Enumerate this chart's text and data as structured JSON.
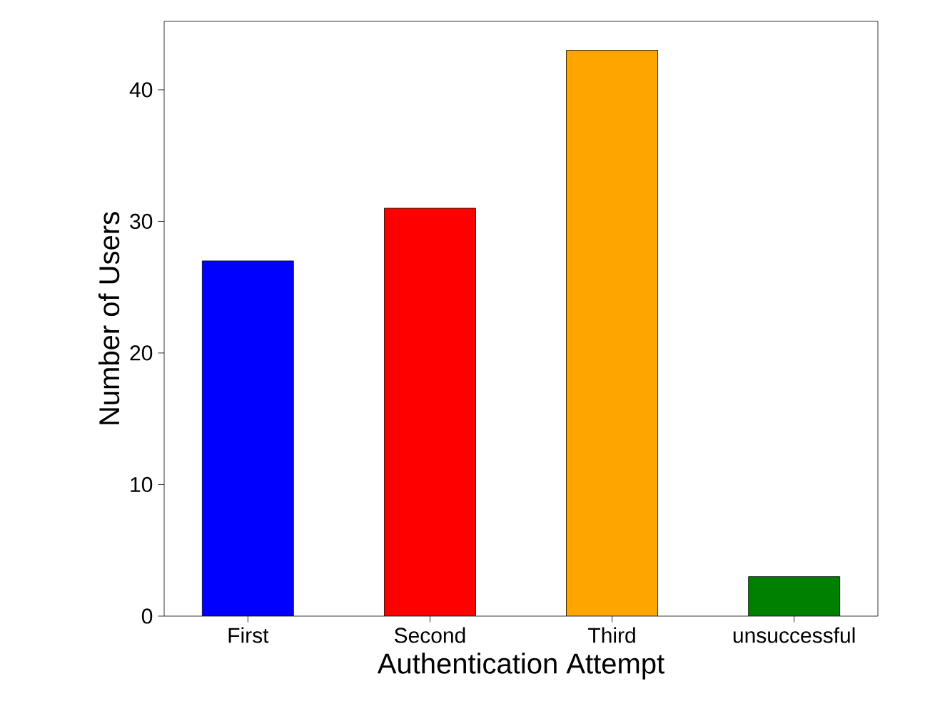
{
  "chart_data": {
    "type": "bar",
    "xlabel": "Authentication Attempt",
    "ylabel": "Number of Users",
    "categories": [
      "First",
      "Second",
      "Third",
      "unsuccessful"
    ],
    "values": [
      27,
      31,
      43,
      3
    ],
    "colors": [
      "#0000ff",
      "#ff0000",
      "#ffa500",
      "#008000"
    ],
    "ylim": [
      0,
      45.2
    ],
    "yticks": [
      0,
      10,
      20,
      30,
      40
    ],
    "grid": false
  }
}
